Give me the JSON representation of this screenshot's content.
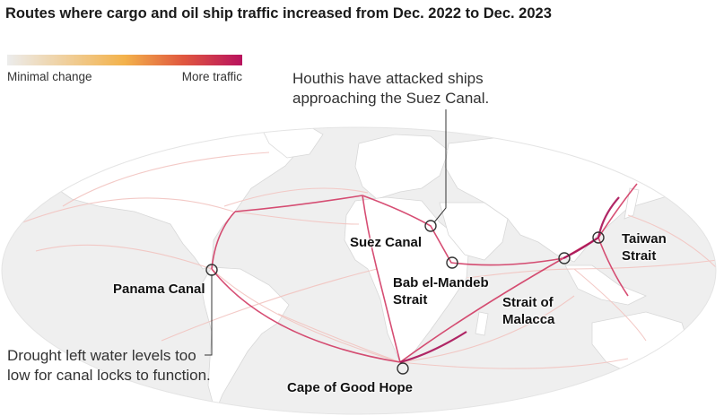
{
  "title": "Routes where cargo and oil ship traffic increased from Dec. 2022 to Dec. 2023",
  "legend": {
    "min_label": "Minimal change",
    "max_label": "More traffic",
    "gradient_colors": [
      "#ececec",
      "#f3b24b",
      "#e0573f",
      "#b8125e"
    ]
  },
  "colors": {
    "land": "#ffffff",
    "ocean": "#efefef",
    "route_light": "#f2b6b0",
    "route_strong": "#c2185b",
    "accent": "#a80f55"
  },
  "annotations": {
    "suez_note": "Houthis have attacked ships approaching the Suez Canal.",
    "panama_note": "Drought left water levels too low for canal locks to function."
  },
  "locations": [
    {
      "id": "suez",
      "name": "Suez Canal"
    },
    {
      "id": "bab",
      "name": "Bab el-Mandeb Strait"
    },
    {
      "id": "malacca",
      "name": "Strait of Malacca"
    },
    {
      "id": "taiwan",
      "name": "Taiwan Strait"
    },
    {
      "id": "panama",
      "name": "Panama Canal"
    },
    {
      "id": "cape",
      "name": "Cape of Good Hope"
    }
  ]
}
